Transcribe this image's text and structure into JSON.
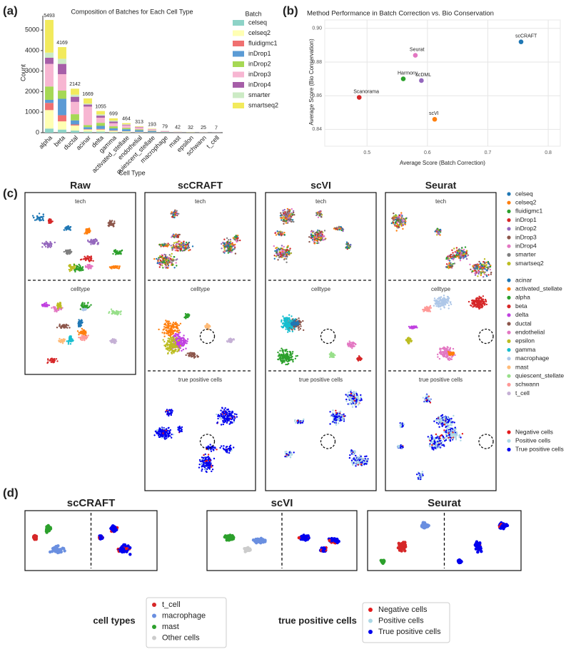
{
  "labels": [
    "(a)",
    "(b)",
    "(c)",
    "(d)"
  ],
  "chart_data": [
    {
      "type": "bar",
      "stacked": true,
      "title": "Composition of Batches for Each Cell Type",
      "x_label": "Cell Type",
      "y_label": "Count",
      "legend_title": "Batch",
      "categories": [
        "alpha",
        "beta",
        "ductal",
        "acinar",
        "delta",
        "gamma",
        "activated_stellate",
        "endothelial",
        "quiescent_stellate",
        "macrophage",
        "mast",
        "epsilon",
        "schwann",
        "t_cell"
      ],
      "series": [
        {
          "name": "celseq",
          "color": "#8dd3c7",
          "values": [
            200,
            150,
            100,
            50,
            50,
            30,
            20,
            10,
            5,
            0,
            0,
            3,
            1,
            0
          ]
        },
        {
          "name": "celseq2",
          "color": "#ffffb3",
          "values": [
            900,
            400,
            250,
            100,
            100,
            60,
            40,
            20,
            10,
            5,
            2,
            3,
            2,
            0
          ]
        },
        {
          "name": "fluidigmc1",
          "color": "#f07070",
          "values": [
            350,
            300,
            50,
            20,
            30,
            20,
            10,
            10,
            5,
            0,
            0,
            1,
            0,
            0
          ]
        },
        {
          "name": "inDrop1",
          "color": "#5b9bd5",
          "values": [
            150,
            800,
            200,
            100,
            150,
            100,
            100,
            80,
            60,
            20,
            10,
            5,
            5,
            1
          ]
        },
        {
          "name": "inDrop2",
          "color": "#a6d854",
          "values": [
            650,
            400,
            300,
            100,
            150,
            100,
            60,
            40,
            20,
            10,
            5,
            3,
            3,
            1
          ]
        },
        {
          "name": "inDrop3",
          "color": "#f7b6d2",
          "values": [
            1100,
            800,
            600,
            900,
            250,
            150,
            130,
            100,
            60,
            30,
            15,
            5,
            8,
            4
          ]
        },
        {
          "name": "inDrop4",
          "color": "#a65ea8",
          "values": [
            300,
            500,
            250,
            100,
            100,
            80,
            30,
            20,
            10,
            10,
            5,
            2,
            2,
            1
          ]
        },
        {
          "name": "smarter",
          "color": "#ccebc5",
          "values": [
            250,
            250,
            100,
            50,
            60,
            50,
            20,
            10,
            5,
            0,
            0,
            2,
            1,
            0
          ]
        },
        {
          "name": "smartseq2",
          "color": "#f2ea5c",
          "values": [
            1593,
            569,
            292,
            249,
            165,
            109,
            54,
            23,
            18,
            4,
            5,
            8,
            3,
            0
          ]
        }
      ],
      "totals": [
        5493,
        4169,
        2142,
        1669,
        1055,
        699,
        464,
        313,
        193,
        79,
        42,
        32,
        25,
        7
      ],
      "ylim": [
        0,
        5700
      ],
      "yticks": [
        0,
        1000,
        2000,
        3000,
        4000,
        5000
      ]
    },
    {
      "type": "scatter",
      "title": "Method Performance in Batch Correction vs. Bio Conservation",
      "x_label": "Average Score (Batch Correction)",
      "y_label": "Average Score (Bio Conservation)",
      "points": [
        {
          "name": "scCRAFT",
          "color": "#1f77b4",
          "x": 0.755,
          "y": 0.892
        },
        {
          "name": "Seurat",
          "color": "#e377c2",
          "x": 0.58,
          "y": 0.884
        },
        {
          "name": "Harmony",
          "color": "#2ca02c",
          "x": 0.56,
          "y": 0.87
        },
        {
          "name": "scDML",
          "color": "#9467bd",
          "x": 0.59,
          "y": 0.869
        },
        {
          "name": "Scanorama",
          "color": "#d62728",
          "x": 0.487,
          "y": 0.859
        },
        {
          "name": "scVI",
          "color": "#ff7f0e",
          "x": 0.612,
          "y": 0.846
        }
      ],
      "xlim": [
        0.43,
        0.82
      ],
      "xticks": [
        0.5,
        0.6,
        0.7,
        0.8
      ],
      "ylim": [
        0.83,
        0.905
      ],
      "yticks": [
        0.84,
        0.86,
        0.88,
        {
          "value": 0.9,
          "label": "0.90"
        }
      ],
      "grid": true
    }
  ],
  "panel_c": {
    "columns": [
      {
        "title": "Raw",
        "rows": [
          "tech",
          "celltype"
        ]
      },
      {
        "title": "scCRAFT",
        "rows": [
          "tech",
          "celltype",
          "true positive cells"
        ]
      },
      {
        "title": "scVI",
        "rows": [
          "tech",
          "celltype",
          "true positive cells"
        ]
      },
      {
        "title": "Seurat",
        "rows": [
          "tech",
          "celltype",
          "true positive cells"
        ]
      }
    ],
    "legends": [
      {
        "items": [
          {
            "name": "celseq",
            "color": "#1f77b4"
          },
          {
            "name": "celseq2",
            "color": "#ff7f0e"
          },
          {
            "name": "fluidigmc1",
            "color": "#2ca02c"
          },
          {
            "name": "inDrop1",
            "color": "#d62728"
          },
          {
            "name": "inDrop2",
            "color": "#9467bd"
          },
          {
            "name": "inDrop3",
            "color": "#8c564b"
          },
          {
            "name": "inDrop4",
            "color": "#e377c2"
          },
          {
            "name": "smarter",
            "color": "#7f7f7f"
          },
          {
            "name": "smartseq2",
            "color": "#bcbd22"
          }
        ]
      },
      {
        "items": [
          {
            "name": "acinar",
            "color": "#1f77b4"
          },
          {
            "name": "activated_stellate",
            "color": "#ff7f0e"
          },
          {
            "name": "alpha",
            "color": "#2ca02c"
          },
          {
            "name": "beta",
            "color": "#d62728"
          },
          {
            "name": "delta",
            "color": "#c040e0"
          },
          {
            "name": "ductal",
            "color": "#8c564b"
          },
          {
            "name": "endothelial",
            "color": "#e377c2"
          },
          {
            "name": "epsilon",
            "color": "#bcbd22"
          },
          {
            "name": "gamma",
            "color": "#17becf"
          },
          {
            "name": "macrophage",
            "color": "#aec7e8"
          },
          {
            "name": "mast",
            "color": "#ffbb78"
          },
          {
            "name": "quiescent_stellate",
            "color": "#98df8a"
          },
          {
            "name": "schwann",
            "color": "#ff9896"
          },
          {
            "name": "t_cell",
            "color": "#c5b0d5"
          }
        ]
      },
      {
        "items": [
          {
            "name": "Negative cells",
            "color": "#e41a1c"
          },
          {
            "name": "Positive cells",
            "color": "#add8e6"
          },
          {
            "name": "True positive cells",
            "color": "#0000ee"
          }
        ]
      }
    ]
  },
  "panel_d": {
    "columns": [
      "scCRAFT",
      "scVI",
      "Seurat"
    ],
    "legends": [
      {
        "title": "cell types",
        "items": [
          {
            "name": "t_cell",
            "color": "#d62728"
          },
          {
            "name": "macrophage",
            "color": "#6a8fe0"
          },
          {
            "name": "mast",
            "color": "#2ca02c"
          },
          {
            "name": "Other cells",
            "color": "#cccccc"
          }
        ]
      },
      {
        "title": "true positive cells",
        "items": [
          {
            "name": "Negative cells",
            "color": "#e41a1c"
          },
          {
            "name": "Positive cells",
            "color": "#add8e6"
          },
          {
            "name": "True positive cells",
            "color": "#0000ee"
          }
        ]
      }
    ]
  }
}
